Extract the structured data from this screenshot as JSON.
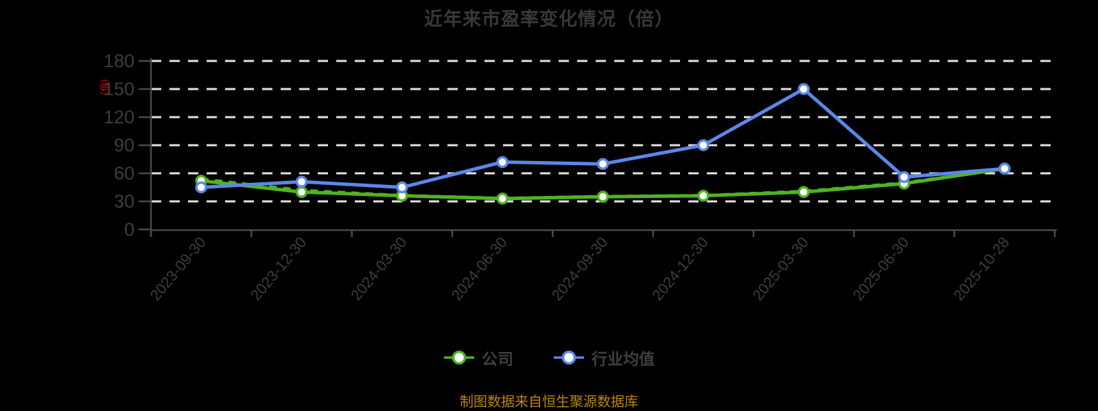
{
  "title": "近年来市盈率变化情况（倍）",
  "source_note": "制图数据来自恒生聚源数据库",
  "colors": {
    "background": "#000000",
    "title": "#383838",
    "axis": "#4a4a4a",
    "tick_label": "#3d3d3d",
    "grid": "#e3e3e3",
    "company": "#4fb321",
    "industry": "#5b87e8",
    "unit_label": "#ee0000",
    "source_note": "#bb870d",
    "marker_fill": "#ffffff"
  },
  "legend": {
    "items": [
      {
        "label": "公司",
        "color": "#4fb321"
      },
      {
        "label": "行业均值",
        "color": "#5b87e8"
      }
    ]
  },
  "chart_data": {
    "type": "line",
    "title": "近年来市盈率变化情况（倍）",
    "categories": [
      "2023-09-30",
      "2023-12-30",
      "2024-03-30",
      "2024-06-30",
      "2024-09-30",
      "2024-12-30",
      "2025-03-30",
      "2025-06-30",
      "2025-10-28"
    ],
    "series": [
      {
        "name": "公司",
        "color": "#4fb321",
        "line_style": "solid",
        "values": [
          52,
          40,
          36,
          33,
          35,
          36,
          40,
          49,
          65
        ]
      },
      {
        "name": "行业均值",
        "color": "#5b87e8",
        "line_style": "solid",
        "values": [
          45,
          51,
          45,
          72,
          70,
          90,
          150,
          56,
          65
        ]
      }
    ],
    "company_dashed_overlay_values": [
      54,
      42,
      36.5,
      33.5,
      35.5,
      36.5,
      41,
      50,
      65
    ],
    "ylabel_unit": "（倍）",
    "ylim": [
      0,
      180
    ],
    "yticks": [
      0,
      30,
      60,
      90,
      120,
      150,
      180
    ],
    "grid": {
      "horizontal": true,
      "style": "dashed",
      "color": "#e3e3e3"
    },
    "legend_position": "bottom",
    "marker": "circle-white-fill"
  }
}
